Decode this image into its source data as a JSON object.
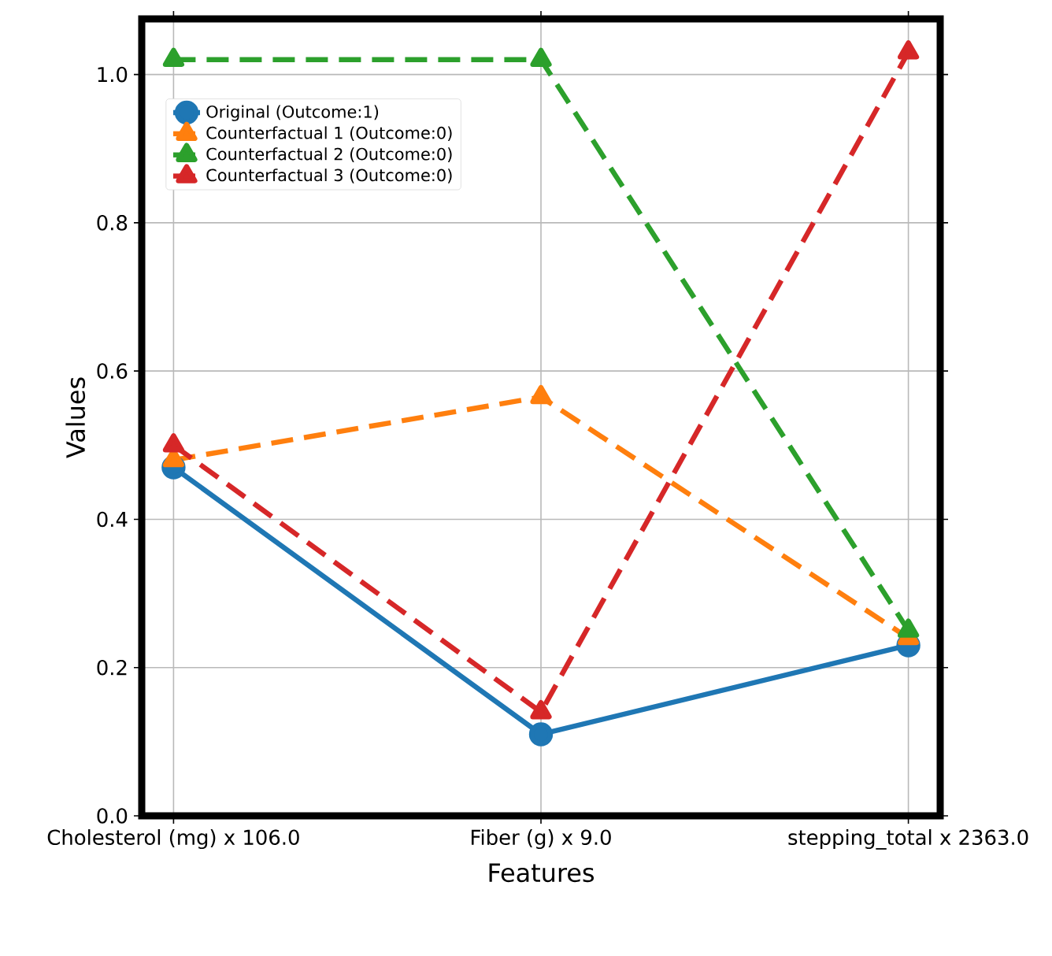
{
  "chart_data": {
    "type": "line",
    "xlabel": "Features",
    "ylabel": "Values",
    "categories": [
      "Cholesterol (mg) x 106.0",
      "Fiber (g) x 9.0",
      "stepping_total x 2363.0"
    ],
    "series": [
      {
        "name": "Original (Outcome:1)",
        "color": "#1f77b4",
        "values": [
          0.47,
          0.11,
          0.23
        ],
        "marker": "circle",
        "line_style": "solid"
      },
      {
        "name": "Counterfactual 1 (Outcome:0)",
        "color": "#ff7f0e",
        "values": [
          0.48,
          0.565,
          0.24
        ],
        "marker": "triangle",
        "line_style": "dashed"
      },
      {
        "name": "Counterfactual 2 (Outcome:0)",
        "color": "#2ca02c",
        "values": [
          1.02,
          1.02,
          0.25
        ],
        "marker": "triangle",
        "line_style": "dashed"
      },
      {
        "name": "Counterfactual 3 (Outcome:0)",
        "color": "#d62728",
        "values": [
          0.5,
          0.14,
          1.03
        ],
        "marker": "triangle",
        "line_style": "dashed"
      }
    ],
    "ylim": [
      0,
      1.075
    ],
    "yticks": [
      {
        "value": 0,
        "label": "0.0"
      },
      {
        "value": 0.2,
        "label": "0.2"
      },
      {
        "value": 0.4,
        "label": "0.4"
      },
      {
        "value": 0.6,
        "label": "0.6"
      },
      {
        "value": 0.8,
        "label": "0.8"
      },
      {
        "value": 1.0,
        "label": "1.0"
      }
    ],
    "grid": true,
    "legend": "top left"
  }
}
